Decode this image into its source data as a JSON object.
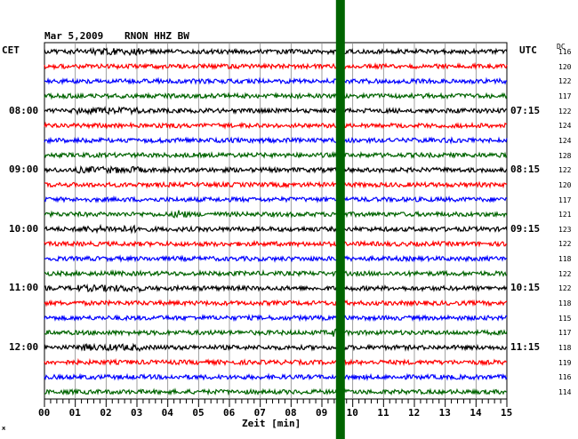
{
  "header": {
    "date": "Mar 5,2009",
    "station": "RNON HHZ BW",
    "left_zone": "CET",
    "right_zone": "UTC",
    "dc_label": "DC"
  },
  "chart_data": {
    "type": "line",
    "title": "Mar 5,2009  RNON HHZ BW",
    "xlabel": "Zeit [min]",
    "xlim": [
      0,
      15
    ],
    "x_ticks": [
      "00",
      "01",
      "02",
      "03",
      "04",
      "05",
      "06",
      "07",
      "08",
      "09",
      "10",
      "11",
      "12",
      "13",
      "14",
      "15"
    ],
    "left_time_labels": [
      "08:00",
      "09:00",
      "10:00",
      "11:00",
      "12:00"
    ],
    "right_time_labels": [
      "07:15",
      "08:15",
      "09:15",
      "10:15",
      "11:15"
    ],
    "trace_colors": [
      "#000000",
      "#ff0000",
      "#0000ff",
      "#006400"
    ],
    "dc_offsets": [
      116,
      120,
      122,
      117,
      122,
      124,
      124,
      128,
      122,
      120,
      117,
      121,
      123,
      122,
      118,
      122,
      122,
      118,
      115,
      117,
      118,
      119,
      116,
      114
    ],
    "trace_count": 24,
    "gap_marker_minute": 9.6,
    "gap_marker_color": "#006400",
    "events": [
      {
        "trace_index": 11,
        "minute": 4.4
      },
      {
        "trace_index": 19,
        "minute": 9.5
      }
    ],
    "grid": true
  },
  "watermark": "ж"
}
